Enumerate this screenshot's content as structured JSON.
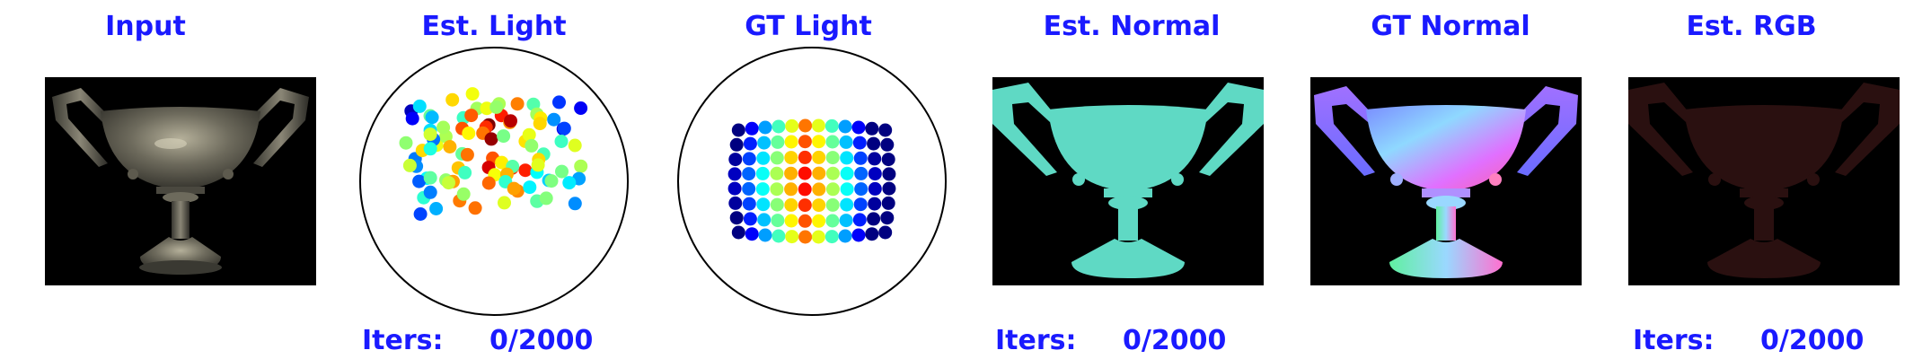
{
  "panels": {
    "input": {
      "title": "Input"
    },
    "est_light": {
      "title": "Est. Light"
    },
    "gt_light": {
      "title": "GT Light"
    },
    "est_normal": {
      "title": "Est. Normal"
    },
    "gt_normal": {
      "title": "GT Normal"
    },
    "est_rgb": {
      "title": "Est. RGB"
    }
  },
  "progress": {
    "label": "Iters:",
    "value": "0/2000"
  },
  "colors": {
    "title_text": "#1a1aff",
    "background": "#ffffff",
    "panel_bg": "#000000",
    "est_normal_fill": "#5fd9c4",
    "est_rgb_fill": "#2a1010"
  }
}
